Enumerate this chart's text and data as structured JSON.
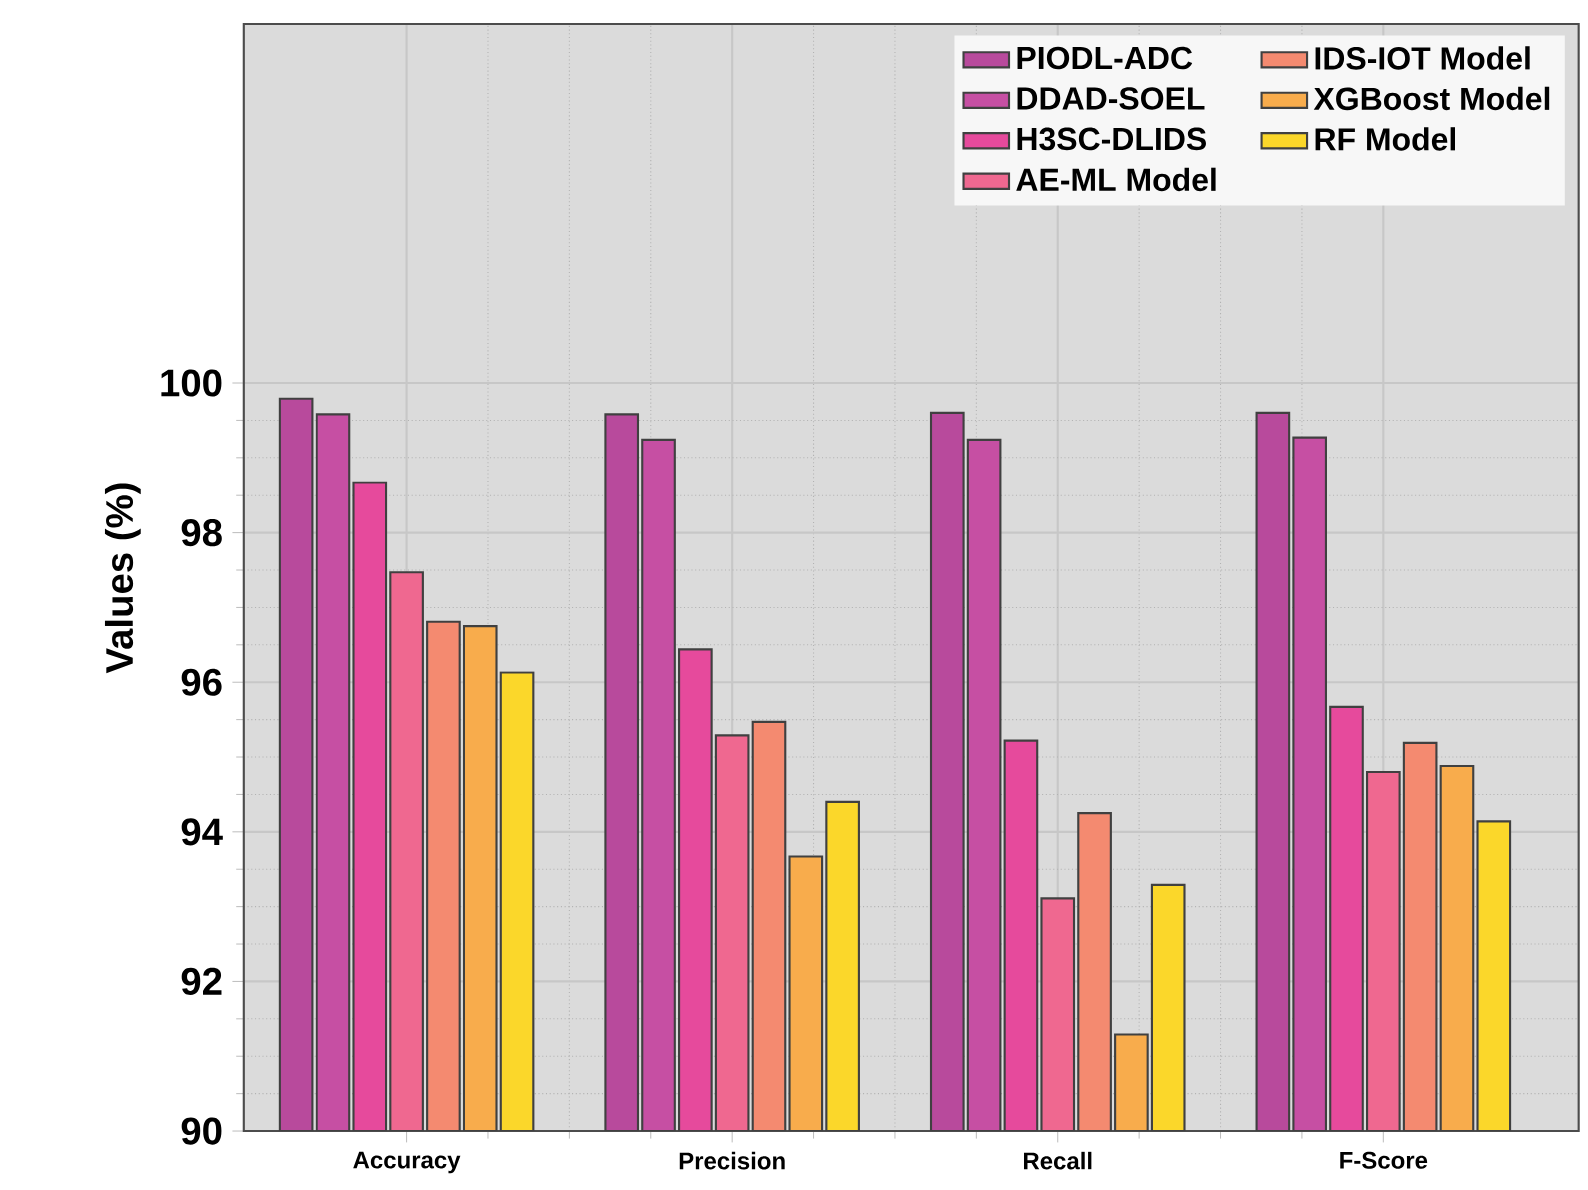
{
  "chart_data": {
    "type": "bar",
    "ylabel": "Values (%)",
    "categories": [
      "Accuracy",
      "Precision",
      "Recall",
      "F-Score"
    ],
    "series": [
      {
        "name": "PIODL-ADC",
        "color": "#b84a9c",
        "values": [
          99.79,
          99.58,
          99.6,
          99.6
        ]
      },
      {
        "name": "DDAD-SOEL",
        "color": "#c64fa3",
        "values": [
          99.58,
          99.24,
          99.24,
          99.27
        ]
      },
      {
        "name": "H3SC-DLIDS",
        "color": "#e64a9c",
        "values": [
          98.67,
          96.44,
          95.22,
          95.67
        ]
      },
      {
        "name": "AE-ML Model",
        "color": "#ef6890",
        "values": [
          97.47,
          95.29,
          93.11,
          94.8
        ]
      },
      {
        "name": "IDS-IOT Model",
        "color": "#f48a70",
        "values": [
          96.81,
          95.47,
          94.25,
          95.19
        ]
      },
      {
        "name": "XGBoost Model",
        "color": "#f8ac4c",
        "values": [
          96.75,
          93.67,
          91.29,
          94.88
        ]
      },
      {
        "name": "RF Model",
        "color": "#fbd72a",
        "values": [
          96.13,
          94.4,
          93.29,
          94.14
        ]
      }
    ],
    "ylim": [
      90,
      104.8
    ],
    "yticks": [
      90,
      92,
      94,
      96,
      98,
      100
    ],
    "grid": true,
    "legend": "top right"
  }
}
